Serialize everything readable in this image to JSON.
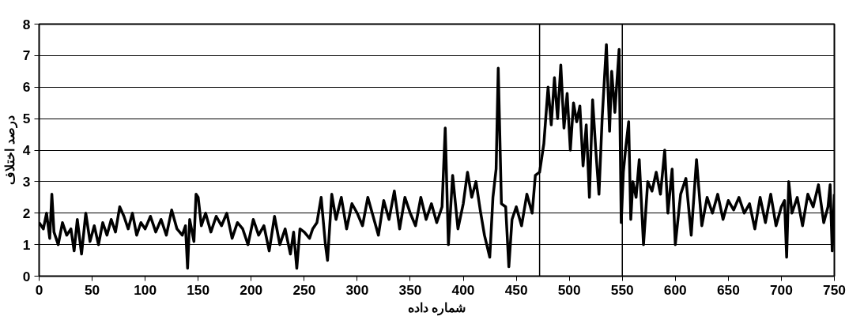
{
  "chart_data": {
    "type": "line",
    "xlabel": "شماره داده",
    "ylabel": "درصد اختلاف",
    "xlim": [
      0,
      750
    ],
    "ylim": [
      0,
      8
    ],
    "xticks": [
      0,
      50,
      100,
      150,
      200,
      250,
      300,
      350,
      400,
      450,
      500,
      550,
      600,
      650,
      700,
      750
    ],
    "yticks": [
      0,
      1,
      2,
      3,
      4,
      5,
      6,
      7,
      8
    ],
    "grid": "y",
    "marker": "none",
    "line_style": "solid",
    "ref_lines": [
      {
        "axis": "x",
        "value": 472
      },
      {
        "axis": "x",
        "value": 550
      }
    ],
    "series": [
      {
        "color": "#000000",
        "x": [
          0,
          4,
          7,
          10,
          12,
          14,
          18,
          22,
          26,
          30,
          33,
          36,
          40,
          44,
          48,
          52,
          56,
          60,
          64,
          68,
          72,
          76,
          80,
          84,
          88,
          92,
          96,
          100,
          105,
          110,
          115,
          120,
          125,
          130,
          135,
          138,
          140,
          142,
          146,
          148,
          150,
          153,
          157,
          162,
          167,
          172,
          177,
          182,
          187,
          192,
          197,
          202,
          207,
          212,
          217,
          222,
          227,
          232,
          237,
          240,
          243,
          246,
          250,
          255,
          258,
          262,
          266,
          270,
          272,
          276,
          280,
          285,
          290,
          295,
          300,
          305,
          310,
          315,
          320,
          325,
          330,
          335,
          340,
          345,
          350,
          355,
          360,
          365,
          370,
          375,
          380,
          383,
          386,
          390,
          395,
          400,
          404,
          408,
          412,
          416,
          420,
          425,
          428,
          431,
          433,
          436,
          440,
          443,
          446,
          450,
          455,
          460,
          465,
          468,
          472,
          476,
          480,
          483,
          486,
          489,
          492,
          495,
          498,
          501,
          504,
          507,
          510,
          513,
          516,
          519,
          522,
          525,
          528,
          531,
          535,
          538,
          540,
          543,
          547,
          549,
          551,
          553,
          556,
          558,
          560,
          563,
          566,
          570,
          574,
          578,
          582,
          586,
          590,
          593,
          597,
          600,
          605,
          610,
          615,
          620,
          625,
          630,
          635,
          640,
          645,
          650,
          655,
          660,
          665,
          670,
          675,
          680,
          685,
          690,
          695,
          700,
          703,
          705,
          707,
          710,
          715,
          720,
          725,
          730,
          735,
          740,
          744,
          746,
          748,
          750
        ],
        "values": [
          1.7,
          1.5,
          2.0,
          1.2,
          2.6,
          1.4,
          1.0,
          1.7,
          1.3,
          1.5,
          0.8,
          1.8,
          0.7,
          2.0,
          1.1,
          1.6,
          1.0,
          1.7,
          1.3,
          1.8,
          1.4,
          2.2,
          1.9,
          1.5,
          2.0,
          1.3,
          1.7,
          1.5,
          1.9,
          1.4,
          1.8,
          1.3,
          2.1,
          1.5,
          1.3,
          1.6,
          0.25,
          1.8,
          1.1,
          2.6,
          2.5,
          1.6,
          2.0,
          1.4,
          1.9,
          1.6,
          2.0,
          1.2,
          1.7,
          1.5,
          1.0,
          1.8,
          1.3,
          1.6,
          0.8,
          1.9,
          1.0,
          1.5,
          0.7,
          1.4,
          0.25,
          1.5,
          1.4,
          1.2,
          1.5,
          1.7,
          2.5,
          1.0,
          0.5,
          2.6,
          1.8,
          2.5,
          1.5,
          2.3,
          2.0,
          1.6,
          2.5,
          1.9,
          1.3,
          2.4,
          1.8,
          2.7,
          1.5,
          2.5,
          2.0,
          1.6,
          2.5,
          1.8,
          2.3,
          1.7,
          2.2,
          4.7,
          1.0,
          3.2,
          1.5,
          2.3,
          3.3,
          2.5,
          3.0,
          2.1,
          1.3,
          0.6,
          2.5,
          3.4,
          6.6,
          2.3,
          2.2,
          0.3,
          1.8,
          2.2,
          1.6,
          2.6,
          2.0,
          3.2,
          3.3,
          4.2,
          6.0,
          4.8,
          6.3,
          5.0,
          6.7,
          4.7,
          5.8,
          4.0,
          5.5,
          4.9,
          5.4,
          3.5,
          4.8,
          2.5,
          5.6,
          4.0,
          2.6,
          5.0,
          7.35,
          4.6,
          6.5,
          5.2,
          7.2,
          1.7,
          3.3,
          4.0,
          4.9,
          1.8,
          3.0,
          2.5,
          3.7,
          1.0,
          3.0,
          2.7,
          3.3,
          2.6,
          4.0,
          2.0,
          3.4,
          1.0,
          2.6,
          3.1,
          1.3,
          3.7,
          1.6,
          2.5,
          2.0,
          2.6,
          1.8,
          2.4,
          2.1,
          2.5,
          2.0,
          2.3,
          1.5,
          2.5,
          1.7,
          2.6,
          1.6,
          2.2,
          2.4,
          0.6,
          3.0,
          2.0,
          2.5,
          1.6,
          2.6,
          2.2,
          2.9,
          1.7,
          2.2,
          2.9,
          0.8,
          2.6
        ]
      }
    ]
  }
}
